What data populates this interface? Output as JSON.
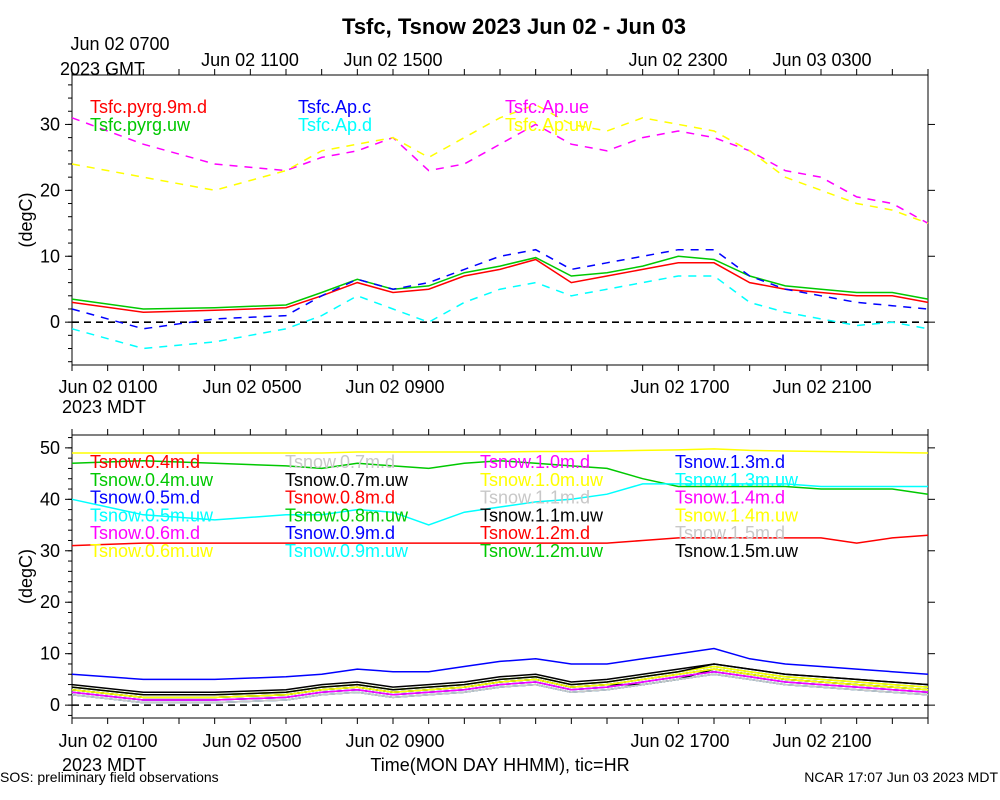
{
  "title": "Tsfc, Tsnow 2023 Jun 02 - Jun 03",
  "top_axis": {
    "ticks": [
      "Jun 02 0700",
      "Jun 02 1100",
      "Jun 02 1500",
      "Jun 02 2300",
      "Jun 03 0300"
    ],
    "tz": "2023 GMT"
  },
  "bottom_axis": {
    "ticks": [
      "Jun 02 0100",
      "Jun 02 0500",
      "Jun 02 0900",
      "Jun 02 1700",
      "Jun 02 2100"
    ],
    "tz": "2023 MDT"
  },
  "xlabel": "Time(MON DAY HHMM), tic=HR",
  "footer_left": "SOS: preliminary field observations",
  "footer_right": "NCAR 17:07 Jun 03 2023 MDT",
  "chart_data": [
    {
      "type": "line",
      "name": "Tsfc",
      "ylabel": "(degC)",
      "ylim": [
        -6.5,
        37.5
      ],
      "yticks": [
        "0",
        "10",
        "20",
        "30"
      ],
      "xlim": [
        0,
        24
      ],
      "x": [
        0,
        2,
        4,
        6,
        7,
        8,
        9,
        10,
        11,
        12,
        13,
        14,
        15,
        16,
        17,
        18,
        19,
        20,
        21,
        22,
        23,
        24
      ],
      "series": [
        {
          "name": "Tsfc.pyrg.9m.d",
          "color": "#ff0000",
          "dash": false,
          "values": [
            3,
            1.5,
            1.8,
            2.2,
            4,
            6,
            4.5,
            5,
            7,
            8,
            9.5,
            6,
            7,
            8,
            9,
            9,
            6,
            5,
            4.5,
            4,
            4,
            3
          ]
        },
        {
          "name": "Tsfc.pyrg.uw",
          "color": "#00c800",
          "dash": false,
          "values": [
            3.5,
            2,
            2.2,
            2.6,
            4.5,
            6.5,
            5,
            5.5,
            7.5,
            8.5,
            9.8,
            7,
            7.5,
            8.5,
            10,
            9.5,
            7,
            5.5,
            5,
            4.5,
            4.5,
            3.5
          ]
        },
        {
          "name": "Tsfc.Ap.c",
          "color": "#0000ff",
          "dash": true,
          "values": [
            2,
            -1,
            0.5,
            1,
            4,
            6.5,
            5,
            6,
            8,
            10,
            11,
            8,
            9,
            10,
            11,
            11,
            7,
            5,
            4,
            3,
            2.5,
            2
          ]
        },
        {
          "name": "Tsfc.Ap.d",
          "color": "#00ffff",
          "dash": true,
          "values": [
            -1,
            -4,
            -3,
            -1,
            1,
            4,
            2,
            0,
            3,
            5,
            6,
            4,
            5,
            6,
            7,
            7,
            3,
            1.5,
            0.5,
            -0.5,
            0,
            -1
          ]
        },
        {
          "name": "Tsfc.Ap.ue",
          "color": "#ff00ff",
          "dash": true,
          "values": [
            31,
            27,
            24,
            23,
            25,
            26,
            28,
            23,
            24,
            27,
            30,
            27,
            26,
            28,
            29,
            28,
            26,
            23,
            22,
            19,
            18,
            15
          ]
        },
        {
          "name": "Tsfc.Ap.uw",
          "color": "#ffff00",
          "dash": true,
          "values": [
            24,
            22,
            20,
            23,
            26,
            27,
            28,
            25,
            28,
            31,
            33,
            30,
            29,
            31,
            30,
            29,
            26,
            22,
            20,
            18,
            17,
            15
          ]
        }
      ]
    },
    {
      "type": "line",
      "name": "Tsnow",
      "ylabel": "(degC)",
      "ylim": [
        -2.5,
        52.5
      ],
      "yticks": [
        "0",
        "10",
        "20",
        "30",
        "40",
        "50"
      ],
      "xlim": [
        0,
        24
      ],
      "x": [
        0,
        2,
        4,
        6,
        7,
        8,
        9,
        10,
        11,
        12,
        13,
        14,
        15,
        16,
        17,
        18,
        19,
        20,
        21,
        22,
        23,
        24
      ],
      "series": [
        {
          "name": "Tsnow.0.4m.d",
          "color": "#ff0000",
          "dash": false,
          "values": [
            3,
            1.5,
            1.5,
            2,
            3,
            3.5,
            2.5,
            3,
            3.5,
            4.5,
            5,
            3.5,
            4,
            5,
            6,
            7,
            6,
            5,
            4.5,
            4,
            3.5,
            3
          ]
        },
        {
          "name": "Tsnow.0.4m.uw",
          "color": "#00c800",
          "dash": false,
          "values": [
            47,
            47.5,
            47,
            46.5,
            46,
            47,
            46.5,
            46,
            47,
            47.5,
            47,
            46.5,
            46,
            44,
            42.5,
            42.5,
            42.5,
            42.5,
            42,
            42,
            42,
            41
          ]
        },
        {
          "name": "Tsnow.0.5m.d",
          "color": "#0000ff",
          "dash": false,
          "values": [
            6,
            5,
            5,
            5.5,
            6,
            7,
            6.5,
            6.5,
            7.5,
            8.5,
            9,
            8,
            8,
            9,
            10,
            11,
            9,
            8,
            7.5,
            7,
            6.5,
            6
          ]
        },
        {
          "name": "Tsnow.0.5m.uw",
          "color": "#00ffff",
          "dash": false,
          "values": [
            40,
            37,
            36,
            37,
            37,
            38,
            37.5,
            35,
            37.5,
            38.5,
            39.5,
            40,
            41,
            43,
            43,
            43,
            43,
            43,
            42.5,
            42.5,
            42.5,
            42.5
          ]
        },
        {
          "name": "Tsnow.0.6m.d",
          "color": "#ff00ff",
          "dash": false,
          "values": [
            2.5,
            1,
            1,
            1.5,
            2.5,
            3,
            2,
            2.5,
            3,
            4,
            4.5,
            3,
            3.5,
            4.5,
            5.5,
            6.5,
            5.5,
            4.5,
            4,
            3.5,
            3,
            2.5
          ]
        },
        {
          "name": "Tsnow.0.6m.uw",
          "color": "#ffff00",
          "dash": false,
          "values": [
            49,
            49,
            49,
            49,
            49,
            49.2,
            49.2,
            49.2,
            49.2,
            49.2,
            49.3,
            49.3,
            49.4,
            49.5,
            49.6,
            49.8,
            49.5,
            49.4,
            49.3,
            49.2,
            49.1,
            49
          ]
        },
        {
          "name": "Tsnow.0.7m.d",
          "color": "#c8c8c8",
          "dash": false,
          "values": [
            3,
            1.5,
            1.5,
            2,
            3,
            3.5,
            2.5,
            3,
            3.5,
            4.5,
            5,
            3.5,
            4,
            5,
            6,
            7,
            6,
            5,
            4.5,
            4,
            3.5,
            3
          ]
        },
        {
          "name": "Tsnow.0.7m.uw",
          "color": "#000000",
          "dash": false,
          "values": [
            4,
            2.5,
            2.5,
            3,
            4,
            4.5,
            3.5,
            4,
            4.5,
            5.5,
            6,
            4.5,
            5,
            6,
            7,
            8,
            7,
            6,
            5.5,
            5,
            4.5,
            4
          ]
        },
        {
          "name": "Tsnow.0.8m.d",
          "color": "#ff0000",
          "dash": false,
          "values": [
            31,
            31.5,
            31.5,
            31.5,
            31.5,
            31.5,
            31.5,
            31.5,
            31.5,
            31.5,
            31.5,
            31.5,
            31.5,
            32,
            32.5,
            32.5,
            32.5,
            32.5,
            32.5,
            31.5,
            32.5,
            33
          ]
        },
        {
          "name": "Tsnow.0.8m.uw",
          "color": "#00c800",
          "dash": false,
          "values": [
            3.5,
            2,
            2,
            2.5,
            3.5,
            4,
            3,
            3.5,
            4,
            5,
            5.5,
            4,
            4.5,
            5.5,
            6.5,
            7.5,
            6.5,
            5.5,
            5,
            4.5,
            4,
            3.5
          ]
        },
        {
          "name": "Tsnow.0.9m.d",
          "color": "#0000ff",
          "dash": false,
          "values": [
            2,
            0.5,
            0.5,
            1,
            2,
            2.5,
            1.5,
            2,
            2.5,
            3.5,
            4,
            2.5,
            3,
            4,
            5,
            6,
            5,
            4,
            3.5,
            3,
            2.5,
            2
          ]
        },
        {
          "name": "Tsnow.0.9m.uw",
          "color": "#00ffff",
          "dash": false,
          "values": [
            2.5,
            1,
            1,
            1.5,
            2.5,
            3,
            2,
            2.5,
            3,
            4,
            4.5,
            3,
            3.5,
            4.5,
            5.5,
            6.5,
            5.5,
            4.5,
            4,
            3.5,
            3,
            2.5
          ]
        },
        {
          "name": "Tsnow.1.0m.d",
          "color": "#ff00ff",
          "dash": false,
          "values": [
            3,
            1.5,
            1.5,
            2,
            3,
            3.5,
            2.5,
            3,
            3.5,
            4.5,
            5,
            3.5,
            4,
            5,
            6,
            7,
            6,
            5,
            4.5,
            4,
            3.5,
            3
          ]
        },
        {
          "name": "Tsnow.1.0m.uw",
          "color": "#ffff00",
          "dash": false,
          "values": [
            3.5,
            2,
            2,
            2.5,
            3.5,
            4,
            3,
            3.5,
            4,
            5,
            5.5,
            4,
            4.5,
            5.5,
            6.5,
            7.5,
            6.5,
            5.5,
            5,
            4.5,
            4,
            3.5
          ]
        },
        {
          "name": "Tsnow.1.1m.d",
          "color": "#c8c8c8",
          "dash": false,
          "values": [
            2.5,
            1,
            1,
            1.5,
            2.5,
            3,
            2,
            2.5,
            3,
            4,
            4.5,
            3,
            3.5,
            4.5,
            5.5,
            6.5,
            5.5,
            4.5,
            4,
            3.5,
            3,
            2.5
          ]
        },
        {
          "name": "Tsnow.1.1m.uw",
          "color": "#000000",
          "dash": false,
          "values": [
            3,
            1.5,
            1.5,
            2,
            3,
            3.5,
            2.5,
            3,
            3.5,
            4.5,
            5,
            3.5,
            4,
            4,
            5,
            7,
            6,
            5,
            4.5,
            4,
            3.5,
            3
          ]
        },
        {
          "name": "Tsnow.1.2m.d",
          "color": "#ff0000",
          "dash": false,
          "values": [
            2,
            0.5,
            0.5,
            1,
            2,
            2.5,
            1.5,
            2,
            2.5,
            3.5,
            4,
            2.5,
            3,
            4,
            5,
            6,
            5,
            4,
            3.5,
            3,
            2.5,
            2
          ]
        },
        {
          "name": "Tsnow.1.2m.uw",
          "color": "#00c800",
          "dash": false,
          "values": [
            3,
            1.5,
            1.5,
            2,
            3,
            3.5,
            2.5,
            3,
            3.5,
            4.5,
            5,
            3.5,
            4,
            5,
            6,
            7,
            6,
            5,
            4.5,
            4,
            3.5,
            3
          ]
        },
        {
          "name": "Tsnow.1.3m.d",
          "color": "#0000ff",
          "dash": false,
          "values": [
            2.5,
            1,
            1,
            1.5,
            2.5,
            3,
            2,
            2.5,
            3,
            4,
            4.5,
            3,
            3.5,
            4.5,
            5.5,
            6.5,
            5.5,
            4.5,
            4,
            3.5,
            3,
            2.5
          ]
        },
        {
          "name": "Tsnow.1.3m.uw",
          "color": "#00ffff",
          "dash": false,
          "values": [
            2,
            0.5,
            0.5,
            1,
            2,
            2.5,
            1.5,
            2,
            2.5,
            3.5,
            4,
            2.5,
            3,
            4,
            5,
            6,
            5,
            4,
            3.5,
            3,
            2.5,
            2
          ]
        },
        {
          "name": "Tsnow.1.4m.d",
          "color": "#ff00ff",
          "dash": false,
          "values": [
            2.5,
            1,
            1,
            1.5,
            2.5,
            3,
            2,
            2.5,
            3,
            4,
            4.5,
            3,
            3.5,
            4.5,
            5.5,
            6.5,
            5.5,
            4.5,
            4,
            3.5,
            3,
            2.5
          ]
        },
        {
          "name": "Tsnow.1.4m.uw",
          "color": "#ffff00",
          "dash": false,
          "values": [
            3,
            1.5,
            1.5,
            2,
            3,
            3.5,
            2.5,
            3,
            3.5,
            4.5,
            5,
            3.5,
            4,
            5,
            6,
            7,
            6,
            5,
            4.5,
            4,
            3.5,
            3
          ]
        },
        {
          "name": "Tsnow.1.5m.d",
          "color": "#c8c8c8",
          "dash": false,
          "values": [
            2,
            0.5,
            0.5,
            1,
            2,
            2.5,
            1.5,
            2,
            2.5,
            3.5,
            4,
            2.5,
            3,
            4,
            5,
            6,
            5,
            4,
            3.5,
            3,
            2.5,
            2
          ]
        },
        {
          "name": "Tsnow.1.5m.uw",
          "color": "#000000",
          "dash": false,
          "values": [
            3.5,
            2,
            2,
            2.5,
            3.5,
            4,
            3,
            3.5,
            4,
            5,
            5.5,
            4,
            4.5,
            5.5,
            6.5,
            8,
            7,
            6,
            5.5,
            5,
            4.5,
            4
          ]
        }
      ]
    }
  ]
}
